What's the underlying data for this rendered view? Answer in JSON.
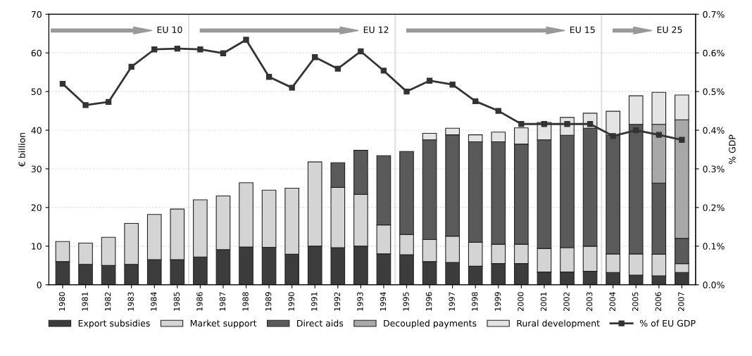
{
  "chart_data": {
    "type": "bar",
    "stacked": true,
    "ylabel": "€ billion",
    "y2label": "% GDP",
    "x": [
      1980,
      1981,
      1982,
      1983,
      1984,
      1985,
      1986,
      1987,
      1988,
      1989,
      1990,
      1991,
      1992,
      1993,
      1994,
      1995,
      1996,
      1997,
      1998,
      1999,
      2000,
      2001,
      2002,
      2003,
      2004,
      2005,
      2006,
      2007
    ],
    "xlim": [
      1979.4,
      2007.6
    ],
    "xticks": [
      1980,
      1981,
      1982,
      1983,
      1984,
      1985,
      1986,
      1987,
      1988,
      1989,
      1990,
      1991,
      1992,
      1993,
      1994,
      1995,
      1996,
      1997,
      1998,
      1999,
      2000,
      2001,
      2002,
      2003,
      2004,
      2005,
      2006,
      2007
    ],
    "ylim": [
      0,
      70
    ],
    "yticks": [
      0,
      10,
      20,
      30,
      40,
      50,
      60,
      70
    ],
    "y2lim": [
      0,
      0.7
    ],
    "y2ticks": [
      {
        "value": 0,
        "label": "0.0%"
      },
      {
        "value": 0.1,
        "label": "0.1%"
      },
      {
        "value": 0.2,
        "label": "0.2%"
      },
      {
        "value": 0.3,
        "label": "0.3%"
      },
      {
        "value": 0.4,
        "label": "0.4%"
      },
      {
        "value": 0.5,
        "label": "0.5%"
      },
      {
        "value": 0.6,
        "label": "0.6%"
      },
      {
        "value": 0.7,
        "label": "0.7%"
      }
    ],
    "grid": "y",
    "legend": "bottom",
    "series": [
      {
        "name": "Export subsidies",
        "color": "#3c3c3c",
        "values": [
          6,
          5.3,
          5,
          5.3,
          6.5,
          6.5,
          7.2,
          9.1,
          9.8,
          9.7,
          7.9,
          10,
          9.6,
          10,
          8,
          7.8,
          6,
          5.8,
          4.8,
          5.5,
          5.5,
          3.3,
          3.3,
          3.5,
          3.2,
          2.5,
          2.3,
          3.2
        ]
      },
      {
        "name": "Market support",
        "color": "#d4d4d4",
        "values": [
          5.2,
          5.5,
          7.3,
          10.6,
          11.7,
          13.1,
          14.8,
          13.9,
          16.6,
          14.8,
          17.1,
          21.8,
          15.6,
          13.4,
          7.5,
          5.2,
          5.7,
          6.8,
          6.2,
          5,
          5,
          6.1,
          6.3,
          6.5,
          4.8,
          5.5,
          5.6,
          2.3
        ]
      },
      {
        "name": "Direct aids",
        "color": "#5a5a5a",
        "values": [
          null,
          null,
          null,
          null,
          null,
          null,
          null,
          null,
          null,
          null,
          null,
          null,
          6.4,
          11.4,
          17.9,
          21.5,
          25.8,
          26.2,
          26,
          26.5,
          25.9,
          28.1,
          29.1,
          30.5,
          30.7,
          33.5,
          18.4,
          6.5
        ]
      },
      {
        "name": "Decoupled payments",
        "color": "#a8a8a8",
        "values": [
          null,
          null,
          null,
          null,
          null,
          null,
          null,
          null,
          null,
          null,
          null,
          null,
          null,
          null,
          null,
          null,
          null,
          null,
          null,
          null,
          null,
          null,
          null,
          null,
          null,
          null,
          15.2,
          30.7
        ]
      },
      {
        "name": "Rural development",
        "color": "#e4e4e4",
        "values": [
          null,
          null,
          null,
          null,
          null,
          null,
          null,
          null,
          null,
          null,
          null,
          null,
          null,
          null,
          null,
          null,
          1.7,
          1.7,
          1.8,
          2.5,
          4.2,
          4.5,
          4.6,
          3.9,
          6.2,
          7.4,
          8.3,
          6.4
        ]
      },
      {
        "name": "% of EU GDP",
        "type": "line",
        "axis": "y2",
        "color": "#333333",
        "marker": "square",
        "values": [
          0.52,
          0.465,
          0.473,
          0.564,
          0.609,
          0.611,
          0.609,
          0.599,
          0.634,
          0.538,
          0.51,
          0.589,
          0.559,
          0.604,
          0.554,
          0.5,
          0.528,
          0.518,
          0.475,
          0.45,
          0.416,
          0.416,
          0.416,
          0.416,
          0.385,
          0.4,
          0.388,
          0.375
        ]
      }
    ],
    "ref_lines": [
      {
        "axis": "x",
        "value": 1985.5,
        "color": "#e0e0e0"
      },
      {
        "axis": "x",
        "value": 1994.5,
        "color": "#e0e0e0"
      },
      {
        "axis": "x",
        "value": 2003.5,
        "color": "#e0e0e0"
      }
    ],
    "annotations": [
      "EU 10",
      "EU 12",
      "EU 15",
      "EU 25"
    ]
  }
}
